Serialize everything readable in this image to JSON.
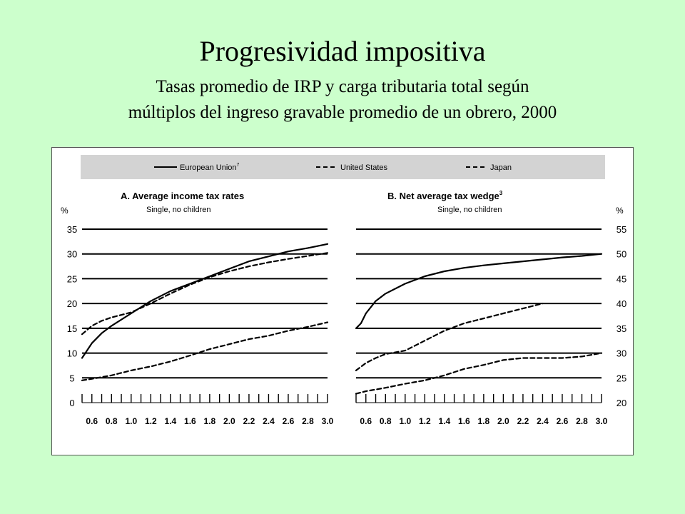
{
  "title": "Progresividad impositiva",
  "subtitle_lines": [
    "Tasas promedio de IRP y carga tributaria total según",
    "múltiplos del ingreso gravable promedio de un obrero, 2000"
  ],
  "legend": {
    "entries": [
      "European Union",
      "United States",
      "Japan"
    ],
    "eu_footnote": "7",
    "placement": "top"
  },
  "chart_data": [
    {
      "type": "line",
      "title": "A. Average income tax rates",
      "subtitle": "Single, no children",
      "ylabel": "%",
      "ylim": [
        0,
        35
      ],
      "yticks": [
        0,
        5,
        10,
        15,
        20,
        25,
        30,
        35
      ],
      "xlim": [
        0.5,
        3.0
      ],
      "xticks": [
        "0.6",
        "0.8",
        "1.0",
        "1.2",
        "1.4",
        "1.6",
        "1.8",
        "2.0",
        "2.2",
        "2.4",
        "2.6",
        "2.8",
        "3.0"
      ],
      "grid": true,
      "series": [
        {
          "name": "European Union",
          "style": "solid",
          "x": [
            0.5,
            0.6,
            0.7,
            0.8,
            1.0,
            1.2,
            1.4,
            1.6,
            1.8,
            2.0,
            2.2,
            2.4,
            2.6,
            2.8,
            3.0
          ],
          "y": [
            9,
            12,
            14,
            15.5,
            18,
            20.5,
            22.5,
            24,
            25.5,
            27,
            28.5,
            29.5,
            30.5,
            31.2,
            32
          ]
        },
        {
          "name": "United States",
          "style": "dashed",
          "x": [
            0.5,
            0.6,
            0.7,
            0.8,
            1.0,
            1.2,
            1.4,
            1.6,
            1.8,
            2.0,
            2.2,
            2.4,
            2.6,
            2.8,
            3.0
          ],
          "y": [
            13.8,
            15.5,
            16.5,
            17.2,
            18.2,
            20,
            22,
            23.8,
            25.3,
            26.5,
            27.5,
            28.3,
            29,
            29.6,
            30.2
          ]
        },
        {
          "name": "Japan",
          "style": "dashed",
          "x": [
            0.5,
            0.6,
            0.8,
            1.0,
            1.2,
            1.4,
            1.6,
            1.8,
            2.0,
            2.2,
            2.4,
            2.6,
            2.8,
            3.0
          ],
          "y": [
            4.5,
            4.8,
            5.5,
            6.5,
            7.3,
            8.3,
            9.5,
            10.8,
            11.8,
            12.8,
            13.5,
            14.5,
            15.3,
            16.2
          ]
        }
      ]
    },
    {
      "type": "line",
      "title": "B. Net average tax wedge",
      "title_footnote": "3",
      "subtitle": "Single, no children",
      "ylabel": "%",
      "ylim": [
        20,
        55
      ],
      "yticks": [
        20,
        25,
        30,
        35,
        40,
        45,
        50,
        55
      ],
      "xlim": [
        0.5,
        3.0
      ],
      "xticks": [
        "0.6",
        "0.8",
        "1.0",
        "1.2",
        "1.4",
        "1.6",
        "1.8",
        "2.0",
        "2.2",
        "2.4",
        "2.6",
        "2.8",
        "3.0"
      ],
      "grid": true,
      "series": [
        {
          "name": "European Union",
          "style": "solid",
          "x": [
            0.5,
            0.55,
            0.6,
            0.7,
            0.8,
            1.0,
            1.2,
            1.4,
            1.6,
            1.8,
            2.0,
            2.2,
            2.4,
            2.6,
            2.8,
            3.0
          ],
          "y": [
            35,
            36,
            38,
            40.5,
            42,
            44,
            45.5,
            46.5,
            47.2,
            47.7,
            48.1,
            48.5,
            48.9,
            49.3,
            49.6,
            50
          ]
        },
        {
          "name": "United States",
          "style": "dashed",
          "x": [
            0.5,
            0.6,
            0.7,
            0.8,
            1.0,
            1.1,
            1.2,
            1.4,
            1.6,
            1.8,
            2.0,
            2.2,
            2.4
          ],
          "y": [
            26.5,
            28,
            29,
            29.8,
            30.5,
            31.5,
            32.5,
            34.5,
            36,
            37,
            38,
            39,
            40
          ]
        },
        {
          "name": "Japan",
          "style": "dashed",
          "x": [
            0.5,
            0.6,
            0.8,
            1.0,
            1.2,
            1.4,
            1.6,
            1.8,
            2.0,
            2.2,
            2.4,
            2.6,
            2.8,
            3.0
          ],
          "y": [
            21.8,
            22.3,
            23,
            23.8,
            24.5,
            25.5,
            26.8,
            27.6,
            28.6,
            29,
            29,
            29,
            29.3,
            30
          ]
        }
      ]
    }
  ]
}
